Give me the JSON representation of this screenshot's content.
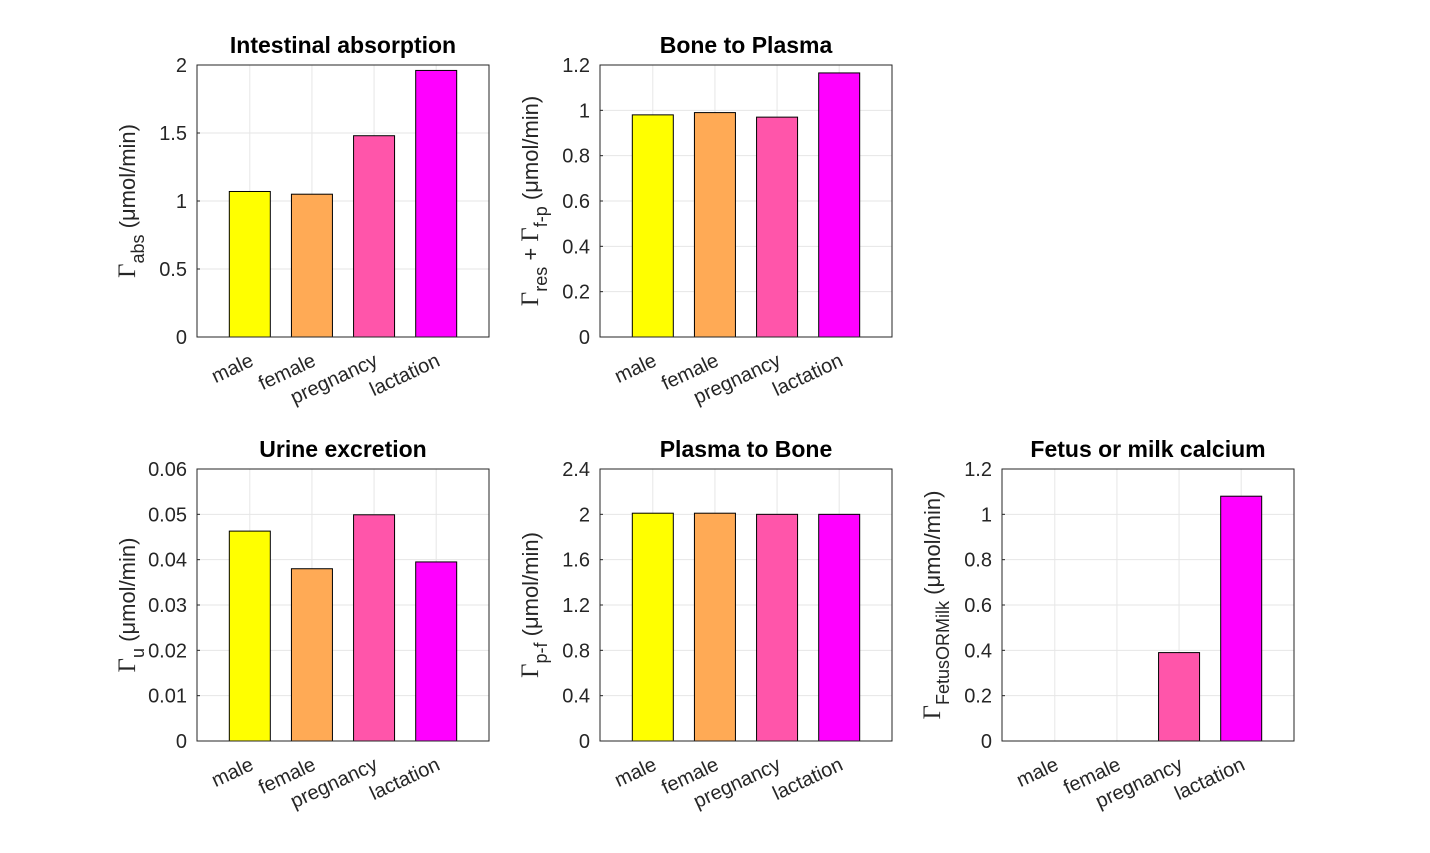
{
  "colors": {
    "male": "#ffff00",
    "female": "#ffaa55",
    "pregnancy": "#ff55aa",
    "lactation": "#ff00ff"
  },
  "chart_data": [
    {
      "id": "intestinal",
      "type": "bar",
      "title": "Intestinal absorption",
      "categories": [
        "male",
        "female",
        "pregnancy",
        "lactation"
      ],
      "values": [
        1.07,
        1.05,
        1.48,
        1.96
      ],
      "ylim": [
        0,
        2
      ],
      "yticks": [
        "0",
        "0.5",
        "1",
        "1.5",
        "2"
      ],
      "ylabel": {
        "main": "Γ",
        "sub": "abs",
        "plus": "",
        "main2": "",
        "sub2": "",
        "unit": " (μmol/min)"
      },
      "grid": true
    },
    {
      "id": "bone-plasma",
      "type": "bar",
      "title": "Bone to Plasma",
      "categories": [
        "male",
        "female",
        "pregnancy",
        "lactation"
      ],
      "values": [
        0.98,
        0.99,
        0.97,
        1.165
      ],
      "ylim": [
        0,
        1.2
      ],
      "yticks": [
        "0",
        "0.2",
        "0.4",
        "0.6",
        "0.8",
        "1",
        "1.2"
      ],
      "ylabel": {
        "main": "Γ",
        "sub": "res",
        "plus": " + ",
        "main2": "Γ",
        "sub2": "f-p",
        "unit": " (μmol/min)"
      },
      "grid": true
    },
    {
      "id": "urine",
      "type": "bar",
      "title": "Urine excretion",
      "categories": [
        "male",
        "female",
        "pregnancy",
        "lactation"
      ],
      "values": [
        0.0463,
        0.038,
        0.0499,
        0.0395
      ],
      "ylim": [
        0,
        0.06
      ],
      "yticks": [
        "0",
        "0.01",
        "0.02",
        "0.03",
        "0.04",
        "0.05",
        "0.06"
      ],
      "ylabel": {
        "main": "Γ",
        "sub": "u",
        "plus": "",
        "main2": "",
        "sub2": "",
        "unit": " (μmol/min)"
      },
      "grid": true
    },
    {
      "id": "plasma-bone",
      "type": "bar",
      "title": "Plasma to Bone",
      "categories": [
        "male",
        "female",
        "pregnancy",
        "lactation"
      ],
      "values": [
        2.01,
        2.01,
        2.0,
        2.0
      ],
      "ylim": [
        0,
        2.4
      ],
      "yticks": [
        "0",
        "0.4",
        "0.8",
        "1.2",
        "1.6",
        "2",
        "2.4"
      ],
      "ylabel": {
        "main": "Γ",
        "sub": "p-f",
        "plus": "",
        "main2": "",
        "sub2": "",
        "unit": " (μmol/min)"
      },
      "grid": true
    },
    {
      "id": "fetus-milk",
      "type": "bar",
      "title": "Fetus or milk calcium",
      "categories": [
        "male",
        "female",
        "pregnancy",
        "lactation"
      ],
      "values": [
        0,
        0,
        0.39,
        1.08
      ],
      "ylim": [
        0,
        1.2
      ],
      "yticks": [
        "0",
        "0.2",
        "0.4",
        "0.6",
        "0.8",
        "1",
        "1.2"
      ],
      "ylabel": {
        "main": "Γ",
        "sub": "FetusORMilk",
        "plus": "",
        "main2": "",
        "sub2": "",
        "unit": "  (μmol/min)"
      },
      "grid": true
    }
  ]
}
